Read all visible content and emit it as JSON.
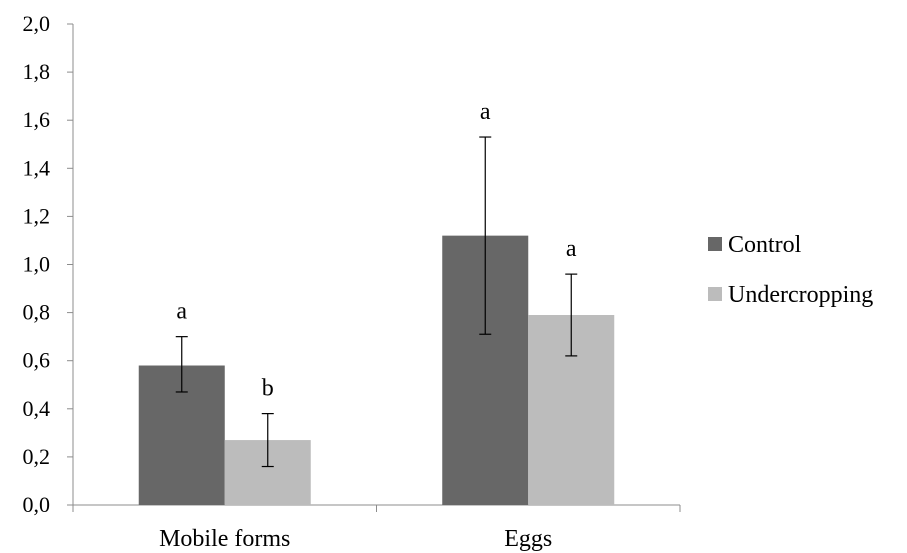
{
  "chart_data": {
    "type": "bar",
    "title": "",
    "xlabel": "",
    "ylabel": "",
    "categories": [
      "Mobile forms",
      "Eggs"
    ],
    "series": [
      {
        "name": "Control",
        "color": "#676767",
        "values": [
          0.58,
          1.12
        ],
        "error_low": [
          0.47,
          0.71
        ],
        "error_high": [
          0.7,
          1.53
        ],
        "significance": [
          "a",
          "a"
        ]
      },
      {
        "name": "Undercropping",
        "color": "#bcbcbc",
        "values": [
          0.27,
          0.79
        ],
        "error_low": [
          0.16,
          0.62
        ],
        "error_high": [
          0.38,
          0.96
        ],
        "significance": [
          "b",
          "a"
        ]
      }
    ],
    "ylim": [
      0,
      2.0
    ],
    "yticks": [
      "0,0",
      "0,2",
      "0,4",
      "0,6",
      "0,8",
      "1,0",
      "1,2",
      "1,4",
      "1,6",
      "1,8",
      "2,0"
    ],
    "grid": false,
    "legend_position": "right"
  }
}
